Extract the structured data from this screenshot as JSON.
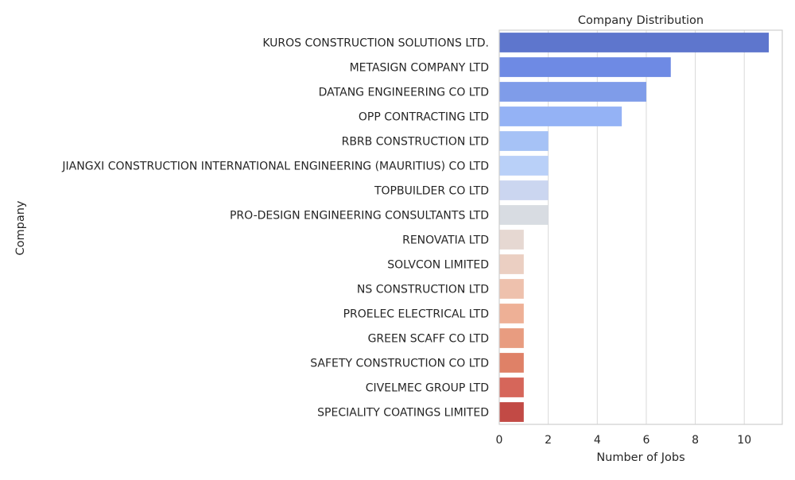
{
  "chart_data": {
    "type": "bar",
    "orientation": "horizontal",
    "title": "Company Distribution",
    "xlabel": "Number of Jobs",
    "ylabel": "Company",
    "xlim": [
      0,
      11.55
    ],
    "xticks": [
      0,
      2,
      4,
      6,
      8,
      10
    ],
    "grid": true,
    "categories": [
      "KUROS CONSTRUCTION SOLUTIONS LTD.",
      "METASIGN COMPANY LTD",
      "DATANG ENGINEERING CO LTD",
      "OPP CONTRACTING LTD",
      "RBRB CONSTRUCTION LTD",
      "JIANGXI CONSTRUCTION INTERNATIONAL ENGINEERING (MAURITIUS) CO LTD",
      "TOPBUILDER CO LTD",
      "PRO-DESIGN ENGINEERING CONSULTANTS LTD",
      "RENOVATIA LTD",
      "SOLVCON LIMITED",
      "NS CONSTRUCTION LTD",
      "PROELEC ELECTRICAL LTD",
      "GREEN SCAFF CO LTD",
      "SAFETY CONSTRUCTION CO LTD",
      "CIVELMEC GROUP LTD",
      "SPECIALITY COATINGS LIMITED"
    ],
    "values": [
      11,
      7,
      6,
      5,
      2,
      2,
      2,
      2,
      1,
      1,
      1,
      1,
      1,
      1,
      1,
      1
    ],
    "colors": [
      "#5e76cd",
      "#6e8ae4",
      "#7f9ce9",
      "#94b2f5",
      "#a6c2f6",
      "#b9d0f8",
      "#cbd6f0",
      "#d8dce2",
      "#e6d8d2",
      "#ebcfc2",
      "#eec1ad",
      "#eeb096",
      "#e89c80",
      "#df8167",
      "#d6665a",
      "#c24a45"
    ]
  }
}
